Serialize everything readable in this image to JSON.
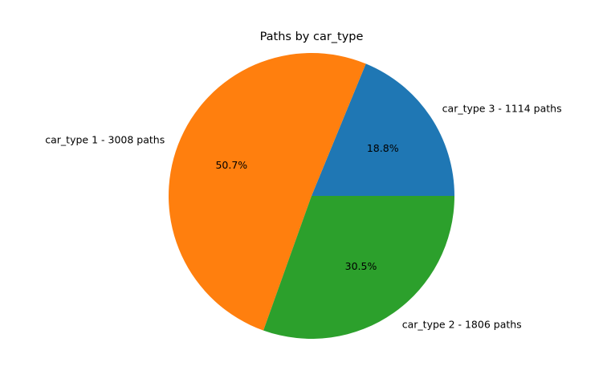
{
  "chart_data": {
    "type": "pie",
    "title": "Paths by car_type",
    "slices": [
      {
        "label": "car_type 3 - 1114 paths",
        "value": 1114,
        "percent_label": "18.8%",
        "color": "#1f77b4"
      },
      {
        "label": "car_type 1 - 3008 paths",
        "value": 3008,
        "percent_label": "50.7%",
        "color": "#ff7f0e"
      },
      {
        "label": "car_type 2 - 1806 paths",
        "value": 1806,
        "percent_label": "30.5%",
        "color": "#2ca02c"
      }
    ],
    "start_angle_deg": 0,
    "direction": "counterclockwise"
  }
}
